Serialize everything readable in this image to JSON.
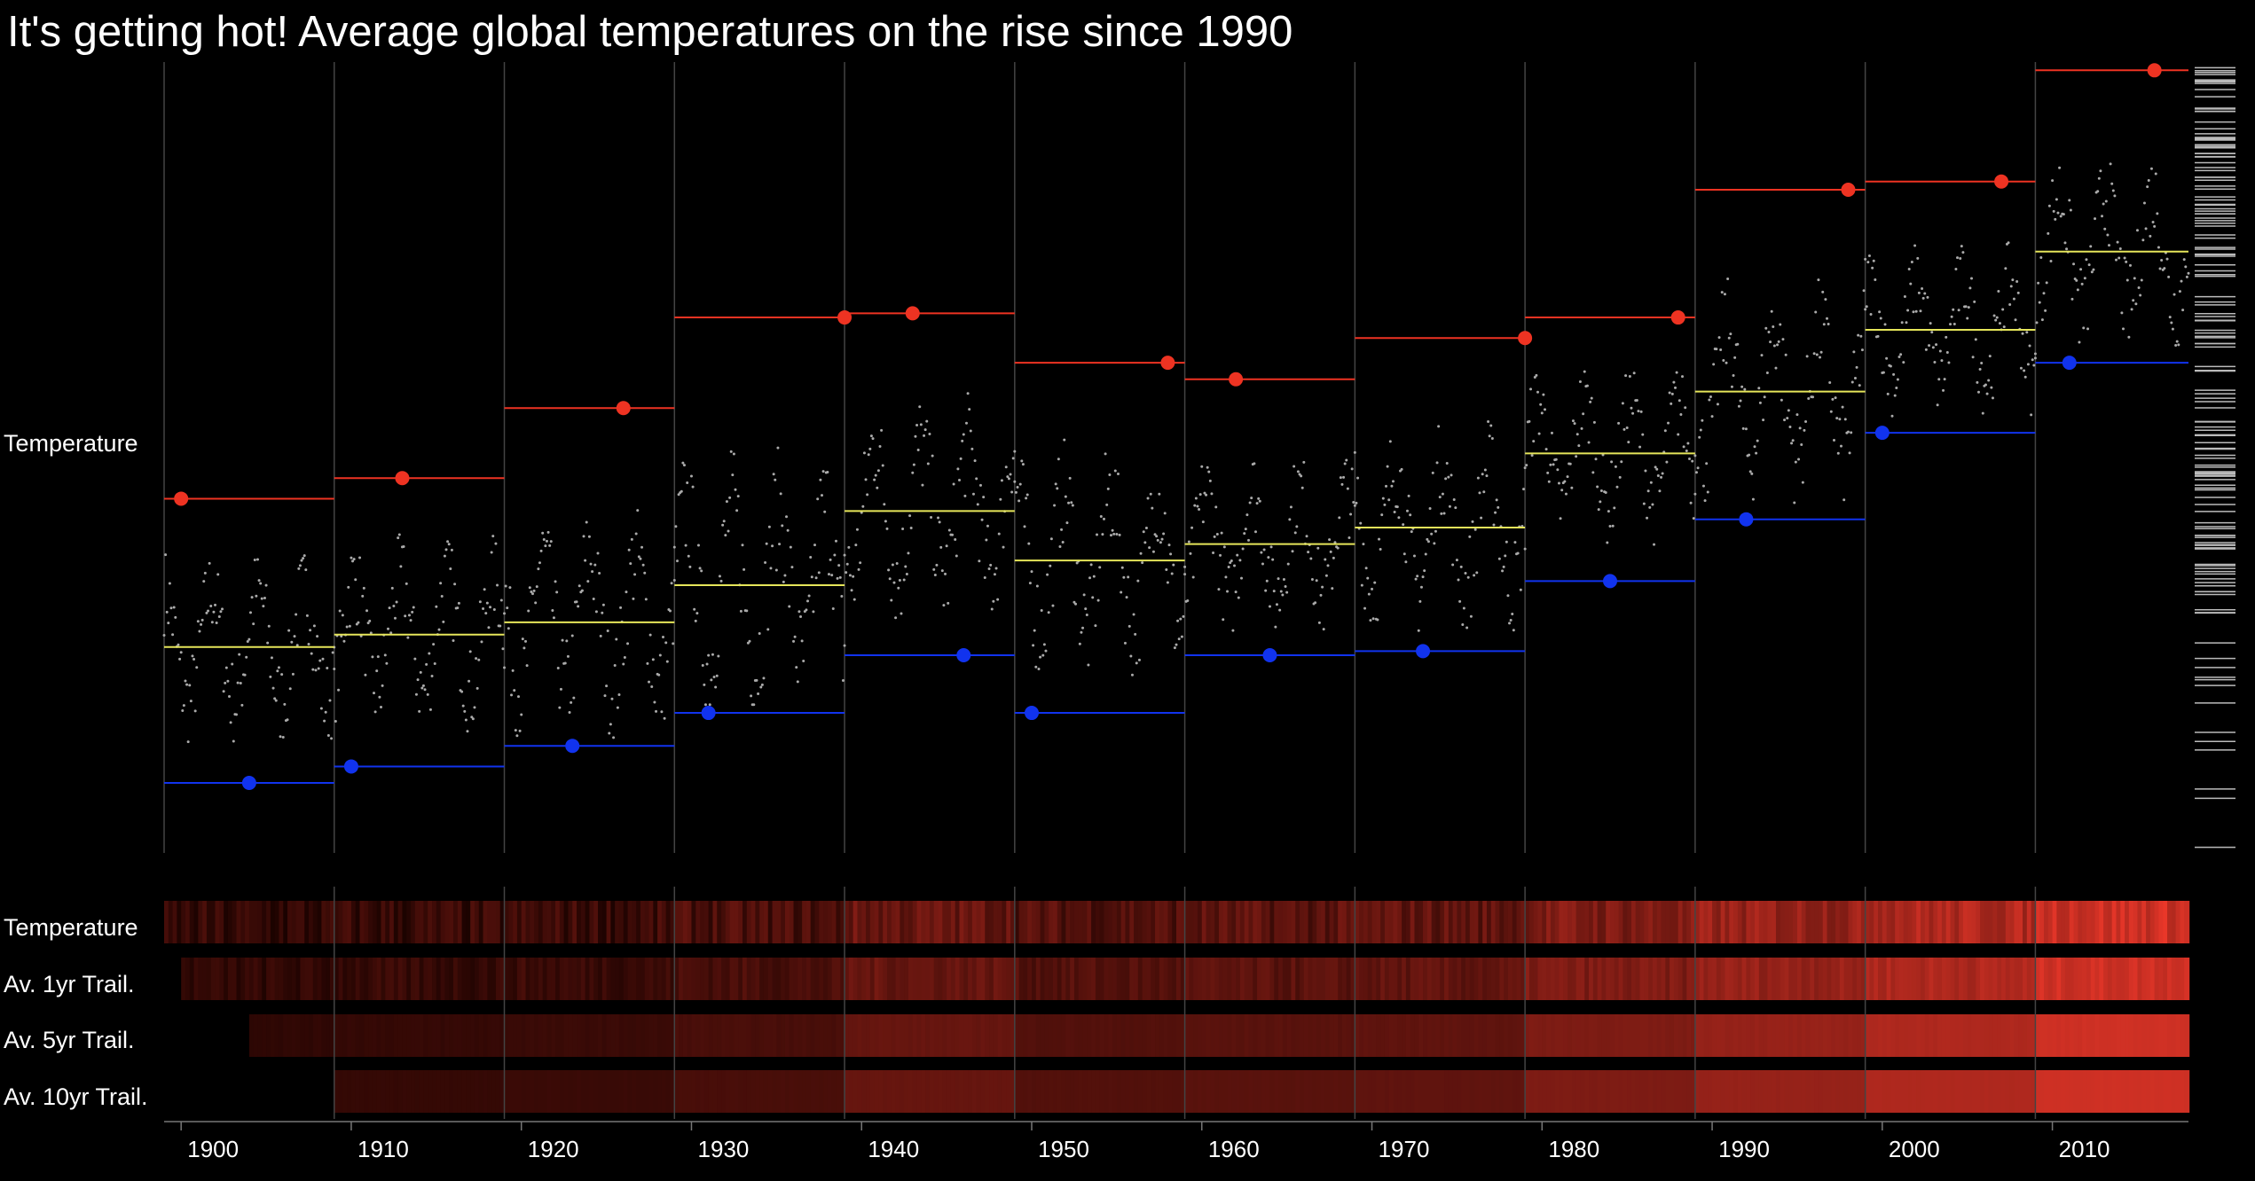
{
  "title": "It's getting hot! Average global temperatures on the rise since 1990",
  "row_labels": {
    "scatter": "Temperature",
    "strip_temperature": "Temperature",
    "strip_1yr": "Av. 1yr Trail.",
    "strip_5yr": "Av. 5yr Trail.",
    "strip_10yr": "Av. 10yr Trail."
  },
  "colors": {
    "background": "#000000",
    "max_marker": "#ee3322",
    "min_marker": "#1133ee",
    "mean_line": "#e6e65a",
    "points": "#aaaaaa",
    "grid": "#444444",
    "strip_low": "#1a0200",
    "strip_high": "#f0392b"
  },
  "chart_data": {
    "type": "scatter",
    "description_of_marks": "monthly temperature points per decade with decade max, min and mean lines; lower heat-strips show temperature and trailing averages",
    "x_ticks": [
      "1900",
      "1910",
      "1920",
      "1930",
      "1940",
      "1950",
      "1960",
      "1970",
      "1980",
      "1990",
      "2000",
      "2010"
    ],
    "xlim": [
      1899,
      2018
    ],
    "ylim": [
      -0.72,
      1.2
    ],
    "decades": [
      {
        "start": 1899,
        "end": 1909,
        "mean": -0.22,
        "max": 0.14,
        "max_year": 1900,
        "min": -0.55,
        "min_year": 1904
      },
      {
        "start": 1909,
        "end": 1919,
        "mean": -0.19,
        "max": 0.19,
        "max_year": 1913,
        "min": -0.51,
        "min_year": 1910
      },
      {
        "start": 1919,
        "end": 1929,
        "mean": -0.16,
        "max": 0.36,
        "max_year": 1926,
        "min": -0.46,
        "min_year": 1923
      },
      {
        "start": 1929,
        "end": 1939,
        "mean": -0.07,
        "max": 0.58,
        "max_year": 1939,
        "min": -0.38,
        "min_year": 1931
      },
      {
        "start": 1939,
        "end": 1949,
        "mean": 0.11,
        "max": 0.59,
        "max_year": 1943,
        "min": -0.24,
        "min_year": 1946
      },
      {
        "start": 1949,
        "end": 1959,
        "mean": -0.01,
        "max": 0.47,
        "max_year": 1958,
        "min": -0.38,
        "min_year": 1950
      },
      {
        "start": 1959,
        "end": 1969,
        "mean": 0.03,
        "max": 0.43,
        "max_year": 1962,
        "min": -0.24,
        "min_year": 1964
      },
      {
        "start": 1969,
        "end": 1979,
        "mean": 0.07,
        "max": 0.53,
        "max_year": 1979,
        "min": -0.23,
        "min_year": 1973
      },
      {
        "start": 1979,
        "end": 1989,
        "mean": 0.25,
        "max": 0.58,
        "max_year": 1988,
        "min": -0.06,
        "min_year": 1984
      },
      {
        "start": 1989,
        "end": 1999,
        "mean": 0.4,
        "max": 0.89,
        "max_year": 1998,
        "min": 0.09,
        "min_year": 1992
      },
      {
        "start": 1999,
        "end": 2009,
        "mean": 0.55,
        "max": 0.91,
        "max_year": 2007,
        "min": 0.3,
        "min_year": 2000
      },
      {
        "start": 2009,
        "end": 2018,
        "mean": 0.74,
        "max": 1.18,
        "max_year": 2016,
        "min": 0.47,
        "min_year": 2011
      }
    ],
    "strips": [
      {
        "name": "Temperature",
        "start": 1899,
        "smoothing": "none"
      },
      {
        "name": "Av. 1yr Trail.",
        "start": 1900,
        "smoothing": "1yr"
      },
      {
        "name": "Av. 5yr Trail.",
        "start": 1904,
        "smoothing": "5yr"
      },
      {
        "name": "Av. 10yr Trail.",
        "start": 1909,
        "smoothing": "10yr"
      }
    ]
  }
}
